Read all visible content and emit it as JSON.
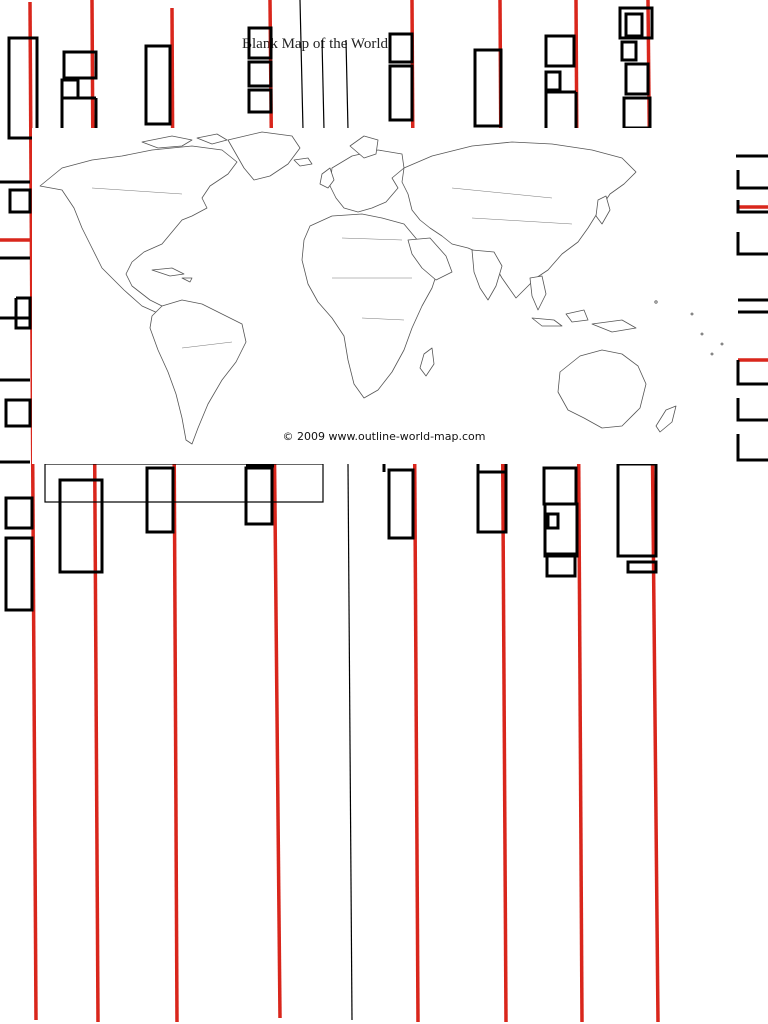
{
  "document": {
    "title": "Blank Map of the World",
    "credit": "© 2009 www.outline-world-map.com"
  },
  "map": {
    "style": "outline",
    "land_fill": "#ffffff",
    "border_color": "#555555",
    "background": "#ffffff"
  },
  "scan_artifacts": {
    "red_line_color": "#d9261c",
    "black_mark_color": "#000000"
  }
}
